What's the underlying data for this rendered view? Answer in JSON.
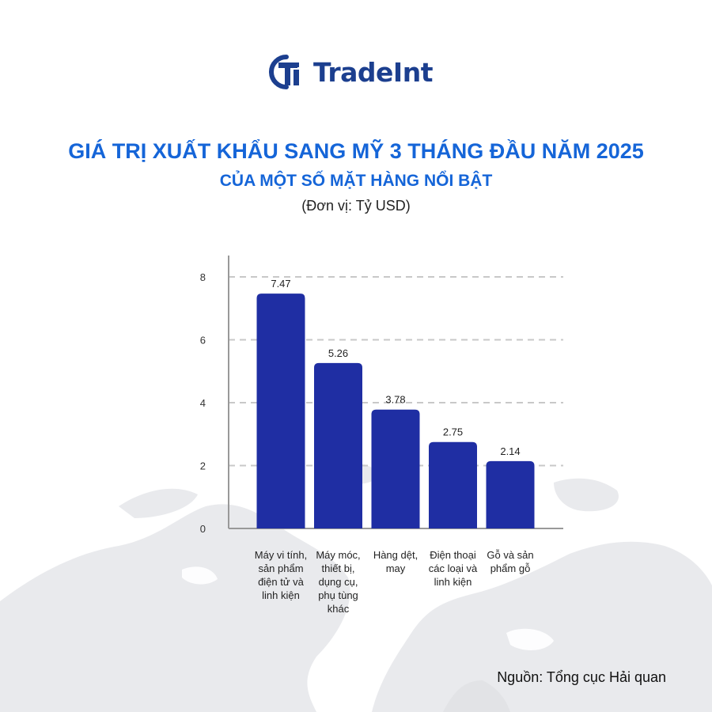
{
  "logo": {
    "text": "TradeInt",
    "color": "#1c3f8f",
    "icon": "tradeint-logo-icon"
  },
  "title": "GIÁ TRỊ XUẤT KHẨU SANG MỸ 3 THÁNG ĐẦU NĂM 2025",
  "subtitle": "CỦA MỘT SỐ MẶT HÀNG NỔI BẬT",
  "unit": "(Đơn vị: Tỷ USD)",
  "source": "Nguồn: Tổng cục Hải quan",
  "colors": {
    "title": "#1565d8",
    "bar": "#1f2ea3",
    "grid": "#c8c8c8",
    "map": "#e9eaed"
  },
  "chart_data": {
    "type": "bar",
    "title": "GIÁ TRỊ XUẤT KHẨU SANG MỸ 3 THÁNG ĐẦU NĂM 2025",
    "subtitle": "CỦA MỘT SỐ MẶT HÀNG NỔI BẬT",
    "ylabel": "",
    "xlabel": "",
    "unit": "Tỷ USD",
    "ylim": [
      0,
      8
    ],
    "yticks": [
      0,
      2,
      4,
      6,
      8
    ],
    "grid": true,
    "legend": "none",
    "categories": [
      [
        "Máy vi tính,",
        "sản phẩm",
        "điện tử và",
        "linh kiện"
      ],
      [
        "Máy móc,",
        "thiết bị,",
        "dụng cụ,",
        "phụ tùng",
        "khác"
      ],
      [
        "Hàng dệt,",
        "may"
      ],
      [
        "Điện thoại",
        "các loại và",
        "linh kiện"
      ],
      [
        "Gỗ và sản",
        "phẩm gỗ"
      ]
    ],
    "values": [
      7.47,
      5.26,
      3.78,
      2.75,
      2.14
    ],
    "data_labels": [
      "7.47",
      "5.26",
      "3.78",
      "2.75",
      "2.14"
    ]
  }
}
